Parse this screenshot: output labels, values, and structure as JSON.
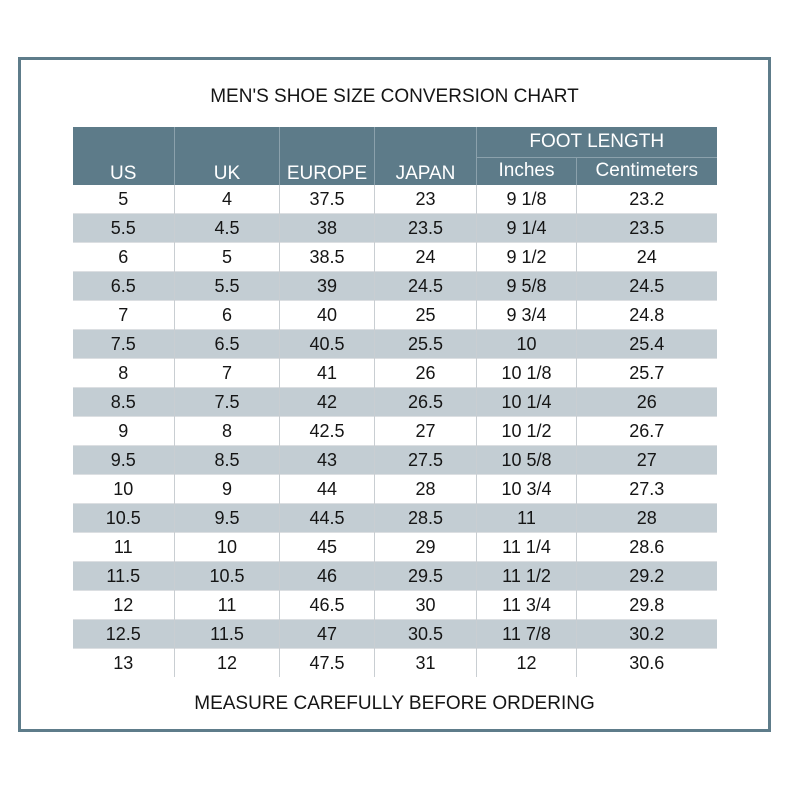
{
  "header": {
    "title": "MEN'S SHOE SIZE CONVERSION CHART"
  },
  "footer": {
    "note": "MEASURE CAREFULLY BEFORE ORDERING"
  },
  "table": {
    "group_header": "FOOT LENGTH",
    "columns": [
      "US",
      "UK",
      "EUROPE",
      "JAPAN",
      "Inches",
      "Centimeters"
    ]
  },
  "chart_data": {
    "type": "table",
    "title": "MEN'S SHOE SIZE CONVERSION CHART",
    "group_header": "FOOT LENGTH",
    "columns": [
      "US",
      "UK",
      "EUROPE",
      "JAPAN",
      "Inches",
      "Centimeters"
    ],
    "rows": [
      [
        "5",
        "4",
        "37.5",
        "23",
        "9 1/8",
        "23.2"
      ],
      [
        "5.5",
        "4.5",
        "38",
        "23.5",
        "9 1/4",
        "23.5"
      ],
      [
        "6",
        "5",
        "38.5",
        "24",
        "9 1/2",
        "24"
      ],
      [
        "6.5",
        "5.5",
        "39",
        "24.5",
        "9 5/8",
        "24.5"
      ],
      [
        "7",
        "6",
        "40",
        "25",
        "9 3/4",
        "24.8"
      ],
      [
        "7.5",
        "6.5",
        "40.5",
        "25.5",
        "10",
        "25.4"
      ],
      [
        "8",
        "7",
        "41",
        "26",
        "10 1/8",
        "25.7"
      ],
      [
        "8.5",
        "7.5",
        "42",
        "26.5",
        "10 1/4",
        "26"
      ],
      [
        "9",
        "8",
        "42.5",
        "27",
        "10 1/2",
        "26.7"
      ],
      [
        "9.5",
        "8.5",
        "43",
        "27.5",
        "10 5/8",
        "27"
      ],
      [
        "10",
        "9",
        "44",
        "28",
        "10 3/4",
        "27.3"
      ],
      [
        "10.5",
        "9.5",
        "44.5",
        "28.5",
        "11",
        "28"
      ],
      [
        "11",
        "10",
        "45",
        "29",
        "11 1/4",
        "28.6"
      ],
      [
        "11.5",
        "10.5",
        "46",
        "29.5",
        "11 1/2",
        "29.2"
      ],
      [
        "12",
        "11",
        "46.5",
        "30",
        "11 3/4",
        "29.8"
      ],
      [
        "12.5",
        "11.5",
        "47",
        "30.5",
        "11 7/8",
        "30.2"
      ],
      [
        "13",
        "12",
        "47.5",
        "31",
        "12",
        "30.6"
      ]
    ],
    "footnote": "MEASURE CAREFULLY BEFORE ORDERING"
  },
  "colors": {
    "frame": "#5e7c8a",
    "header_bg": "#5d7b89",
    "header_text": "#ffffff",
    "stripe_bg": "#c3cdd3",
    "text": "#151515"
  }
}
